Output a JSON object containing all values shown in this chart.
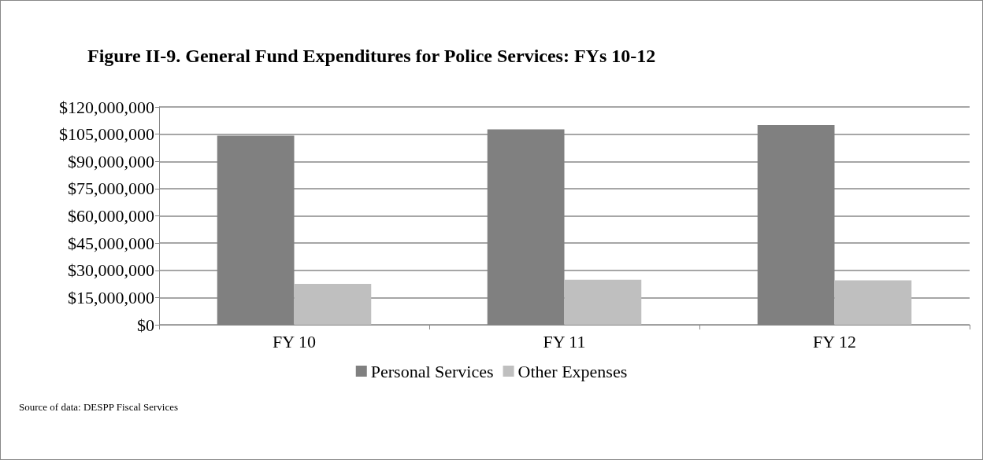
{
  "chart_data": {
    "type": "bar",
    "title": "Figure II-9. General Fund Expenditures for Police Services: FYs 10-12",
    "categories": [
      "FY 10",
      "FY 11",
      "FY 12"
    ],
    "series": [
      {
        "name": "Personal Services",
        "color": "#808080",
        "values": [
          104200000,
          107700000,
          110000000
        ]
      },
      {
        "name": "Other Expenses",
        "color": "#bfbfbf",
        "values": [
          22500000,
          24800000,
          24500000
        ]
      }
    ],
    "ylim": [
      0,
      120000000
    ],
    "yticks": [
      {
        "value": 0,
        "label": "$0"
      },
      {
        "value": 15000000,
        "label": "$15,000,000"
      },
      {
        "value": 30000000,
        "label": "$30,000,000"
      },
      {
        "value": 45000000,
        "label": "$45,000,000"
      },
      {
        "value": 60000000,
        "label": "$60,000,000"
      },
      {
        "value": 75000000,
        "label": "$75,000,000"
      },
      {
        "value": 90000000,
        "label": "$90,000,000"
      },
      {
        "value": 105000000,
        "label": "$105,000,000"
      },
      {
        "value": 120000000,
        "label": "$120,000,000"
      }
    ],
    "grid": "y",
    "legend": "bottom",
    "annotations": [
      "Source of data: DESPP Fiscal Services"
    ]
  }
}
